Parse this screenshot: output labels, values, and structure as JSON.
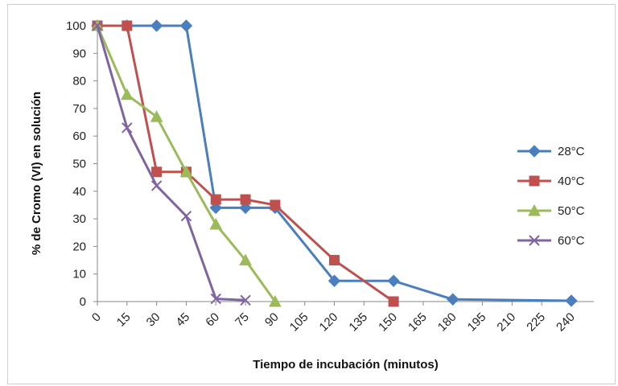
{
  "chart_data": {
    "type": "line",
    "title": "",
    "xlabel": "Tiempo de incubación (minutos)",
    "ylabel": "% de Cromo (VI) en solución",
    "x_ticks": [
      "0",
      "15",
      "30",
      "45",
      "60",
      "75",
      "90",
      "105",
      "120",
      "135",
      "150",
      "165",
      "180",
      "195",
      "210",
      "225",
      "240"
    ],
    "y_ticks": [
      "0",
      "10",
      "20",
      "30",
      "40",
      "50",
      "60",
      "70",
      "80",
      "90",
      "100"
    ],
    "xlim": [
      0,
      240
    ],
    "ylim": [
      0,
      100
    ],
    "grid": false,
    "legend_position": "right",
    "series": [
      {
        "name": "28°C",
        "color": "#4a7ebf",
        "marker": "diamond",
        "x": [
          0,
          15,
          30,
          45,
          60,
          75,
          90,
          120,
          150,
          180,
          240
        ],
        "y": [
          100,
          100,
          100,
          100,
          34,
          34,
          34,
          7.5,
          7.5,
          0.8,
          0.3
        ]
      },
      {
        "name": "40°C",
        "color": "#c0504d",
        "marker": "square",
        "x": [
          0,
          15,
          30,
          45,
          60,
          75,
          90,
          120,
          150
        ],
        "y": [
          100,
          100,
          47,
          47,
          37,
          37,
          35,
          15,
          0
        ]
      },
      {
        "name": "50°C",
        "color": "#9bbb59",
        "marker": "triangle",
        "x": [
          0,
          15,
          30,
          45,
          60,
          75,
          90
        ],
        "y": [
          100,
          75,
          67,
          47,
          28,
          15,
          0
        ]
      },
      {
        "name": "60°C",
        "color": "#8064a2",
        "marker": "x",
        "x": [
          0,
          15,
          30,
          45,
          60,
          75
        ],
        "y": [
          100,
          63,
          42,
          31,
          1,
          0.5
        ]
      }
    ]
  }
}
